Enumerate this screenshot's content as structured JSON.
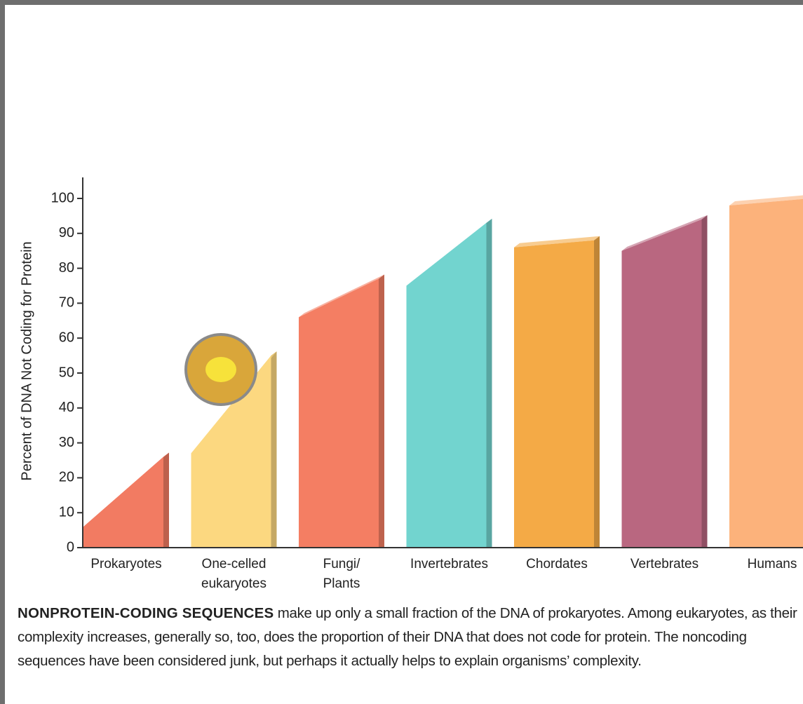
{
  "chart_data": {
    "type": "range-bar",
    "ylabel": "Percent of DNA Not Coding for Protein",
    "categories": [
      "Prokaryotes",
      "One-celled\neukaryotes",
      "Fungi/\nPlants",
      "Invertebrates",
      "Chordates",
      "Vertebrates",
      "Humans"
    ],
    "values": [
      [
        6,
        26
      ],
      [
        27,
        55
      ],
      [
        66,
        77
      ],
      [
        75,
        93
      ],
      [
        86,
        88
      ],
      [
        85,
        94
      ],
      [
        98,
        100
      ]
    ],
    "colors": [
      "#f27b62",
      "#fcd880",
      "#f47e63",
      "#72d4cf",
      "#f4aa46",
      "#b96780",
      "#fcb27b"
    ],
    "ylim": [
      0,
      100
    ],
    "yticks": [
      0,
      10,
      20,
      30,
      40,
      50,
      60,
      70,
      80,
      90,
      100
    ],
    "caption_lead": "NONPROTEIN-CODING SEQUENCES",
    "caption": "make up only a small fraction of the DNA of prokaryotes. Among eukaryotes, as their complexity increases, generally so, too, does the proportion of their DNA that does not code for protein. The noncoding sequences have been considered junk, but perhaps it actually helps to explain organisms’ complexity."
  }
}
